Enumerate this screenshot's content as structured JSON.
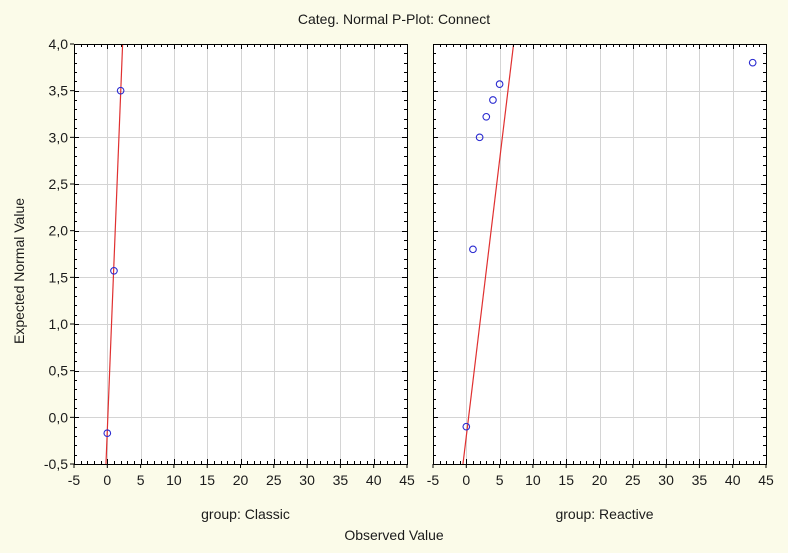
{
  "colors": {
    "background": "#fbfbe9",
    "plot_background": "#ffffff",
    "grid": "#d4d4d4",
    "fit_line": "#e03030",
    "point": "#2a2ad0",
    "axis": "#000000"
  },
  "chart_data": {
    "type": "scatter",
    "title": "Categ. Normal P-Plot:  Connect",
    "xlabel": "Observed Value",
    "ylabel": "Expected Normal Value",
    "xlim": [
      -5,
      45
    ],
    "ylim": [
      -0.5,
      4.0
    ],
    "x_ticks": [
      "-5",
      "0",
      "5",
      "10",
      "15",
      "20",
      "25",
      "30",
      "35",
      "40",
      "45"
    ],
    "y_ticks": [
      "-0,5",
      "0,0",
      "0,5",
      "1,0",
      "1,5",
      "2,0",
      "2,5",
      "3,0",
      "3,5",
      "4,0"
    ],
    "grid": true,
    "panels": [
      {
        "label": "group: Classic",
        "points": [
          {
            "x": 0,
            "y": -0.17
          },
          {
            "x": 1,
            "y": 1.57
          },
          {
            "x": 2,
            "y": 3.5
          }
        ],
        "fit_line": {
          "x0": -0.2,
          "y0": -0.5,
          "x1": 2.3,
          "y1": 4.0
        }
      },
      {
        "label": "group: Reactive",
        "points": [
          {
            "x": 0,
            "y": -0.1
          },
          {
            "x": 1,
            "y": 1.8
          },
          {
            "x": 2,
            "y": 3.0
          },
          {
            "x": 3,
            "y": 3.22
          },
          {
            "x": 4,
            "y": 3.4
          },
          {
            "x": 5,
            "y": 3.57
          },
          {
            "x": 43,
            "y": 3.8
          }
        ],
        "fit_line": {
          "x0": -0.5,
          "y0": -0.5,
          "x1": 7.1,
          "y1": 4.0
        }
      }
    ]
  }
}
